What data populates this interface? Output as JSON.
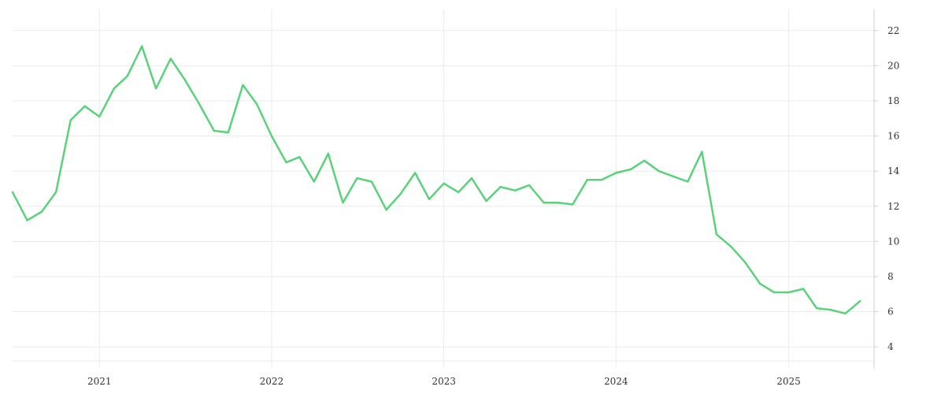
{
  "chart_data": {
    "type": "line",
    "x_axis": {
      "type": "date",
      "range": [
        "2020-07-01",
        "2025-07-01"
      ],
      "tick_labels": [
        "2021",
        "2022",
        "2023",
        "2024",
        "2025"
      ],
      "ticks": [
        "2021-01-01",
        "2022-01-01",
        "2023-01-01",
        "2024-01-01",
        "2025-01-01"
      ],
      "grid": true
    },
    "y_axis": {
      "position": "right",
      "range": [
        3.2,
        23.2
      ],
      "ticks": [
        4,
        6,
        8,
        10,
        12,
        14,
        16,
        18,
        20,
        22
      ],
      "tick_labels": [
        "4",
        "6",
        "8",
        "10",
        "12",
        "14",
        "16",
        "18",
        "20",
        "22"
      ],
      "grid": true
    },
    "series": [
      {
        "color": "#5ad27a",
        "points": [
          [
            "2020-07-01",
            12.8
          ],
          [
            "2020-08-01",
            11.2
          ],
          [
            "2020-09-01",
            11.7
          ],
          [
            "2020-10-01",
            12.8
          ],
          [
            "2020-11-01",
            16.9
          ],
          [
            "2020-12-01",
            17.7
          ],
          [
            "2021-01-01",
            17.1
          ],
          [
            "2021-02-01",
            18.7
          ],
          [
            "2021-03-01",
            19.4
          ],
          [
            "2021-04-01",
            21.1
          ],
          [
            "2021-05-01",
            18.7
          ],
          [
            "2021-06-01",
            20.4
          ],
          [
            "2021-07-01",
            19.2
          ],
          [
            "2021-08-01",
            17.8
          ],
          [
            "2021-09-01",
            16.3
          ],
          [
            "2021-10-01",
            16.2
          ],
          [
            "2021-11-01",
            18.9
          ],
          [
            "2021-12-01",
            17.8
          ],
          [
            "2022-01-01",
            16.0
          ],
          [
            "2022-02-01",
            14.5
          ],
          [
            "2022-03-01",
            14.8
          ],
          [
            "2022-04-01",
            13.4
          ],
          [
            "2022-05-01",
            15.0
          ],
          [
            "2022-06-01",
            12.2
          ],
          [
            "2022-07-01",
            13.6
          ],
          [
            "2022-08-01",
            13.4
          ],
          [
            "2022-09-01",
            11.8
          ],
          [
            "2022-10-01",
            12.7
          ],
          [
            "2022-11-01",
            13.9
          ],
          [
            "2022-12-01",
            12.4
          ],
          [
            "2023-01-01",
            13.3
          ],
          [
            "2023-02-01",
            12.8
          ],
          [
            "2023-03-01",
            13.6
          ],
          [
            "2023-04-01",
            12.3
          ],
          [
            "2023-05-01",
            13.1
          ],
          [
            "2023-06-01",
            12.9
          ],
          [
            "2023-07-01",
            13.2
          ],
          [
            "2023-08-01",
            12.2
          ],
          [
            "2023-09-01",
            12.2
          ],
          [
            "2023-10-01",
            12.1
          ],
          [
            "2023-11-01",
            13.5
          ],
          [
            "2023-12-01",
            13.5
          ],
          [
            "2024-01-01",
            13.9
          ],
          [
            "2024-02-01",
            14.1
          ],
          [
            "2024-03-01",
            14.6
          ],
          [
            "2024-04-01",
            14.0
          ],
          [
            "2024-05-01",
            13.7
          ],
          [
            "2024-06-01",
            13.4
          ],
          [
            "2024-07-01",
            15.1
          ],
          [
            "2024-08-01",
            10.4
          ],
          [
            "2024-09-01",
            9.7
          ],
          [
            "2024-10-01",
            8.8
          ],
          [
            "2024-11-01",
            7.6
          ],
          [
            "2024-12-01",
            7.1
          ],
          [
            "2025-01-01",
            7.1
          ],
          [
            "2025-02-01",
            7.3
          ],
          [
            "2025-03-01",
            6.2
          ],
          [
            "2025-04-01",
            6.1
          ],
          [
            "2025-05-01",
            5.9
          ],
          [
            "2025-06-01",
            6.6
          ]
        ]
      }
    ]
  }
}
